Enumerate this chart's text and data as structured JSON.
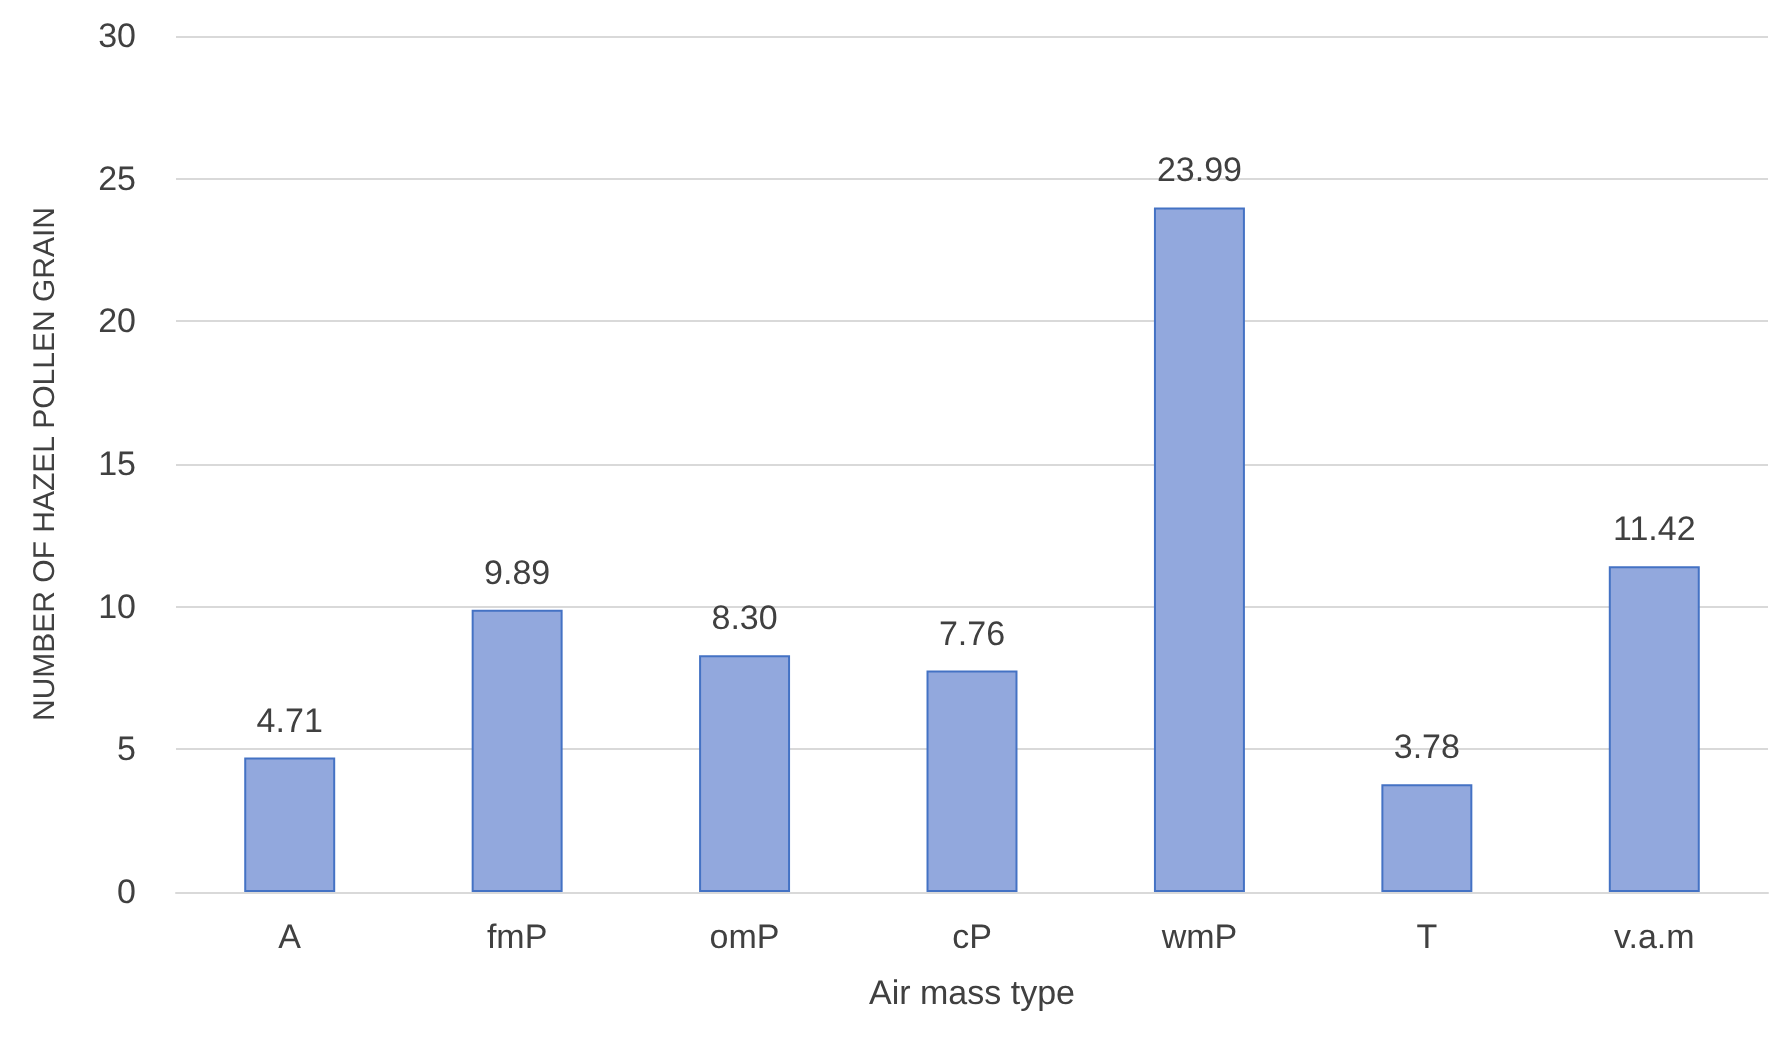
{
  "chart_data": {
    "type": "bar",
    "xlabel": "Air mass type",
    "ylabel": "NUMBER OF HAZEL POLLEN GRAIN",
    "categories": [
      "A",
      "fmP",
      "omP",
      "cP",
      "wmP",
      "T",
      "v.a.m"
    ],
    "values": [
      4.71,
      9.89,
      8.3,
      7.76,
      23.99,
      3.78,
      11.42
    ],
    "value_labels": [
      "4.71",
      "9.89",
      "8.30",
      "7.76",
      "23.99",
      "3.78",
      "11.42"
    ],
    "color": "#92a8dd",
    "ylim": [
      0,
      30
    ],
    "yticks": [
      0,
      5,
      10,
      15,
      20,
      25,
      30
    ],
    "grid": "y"
  }
}
